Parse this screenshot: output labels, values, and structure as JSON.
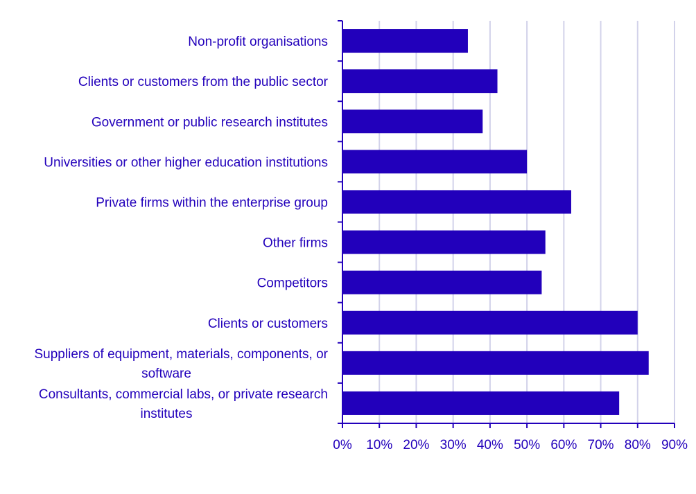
{
  "chart_data": {
    "type": "bar",
    "orientation": "horizontal",
    "title": "",
    "xlabel": "",
    "ylabel": "",
    "categories": [
      "Non-profit organisations",
      "Clients or customers from the public sector",
      "Government or public research institutes",
      "Universities or other higher education institutions",
      "Private firms within the enterprise group",
      "Other firms",
      "Competitors",
      "Clients or customers",
      "Suppliers of equipment, materials, components, or software",
      "Consultants, commercial labs, or private research institutes"
    ],
    "category_lines": [
      [
        "Non-profit organisations"
      ],
      [
        "Clients or customers from the public sector"
      ],
      [
        "Government or public research institutes"
      ],
      [
        "Universities or other higher education institutions"
      ],
      [
        "Private firms within the enterprise group"
      ],
      [
        "Other firms"
      ],
      [
        "Competitors"
      ],
      [
        "Clients or customers"
      ],
      [
        "Suppliers of equipment, materials, components, or",
        "software"
      ],
      [
        "Consultants, commercial labs, or private research",
        "institutes"
      ]
    ],
    "values": [
      34,
      42,
      38,
      50,
      62,
      55,
      54,
      80,
      83,
      75
    ],
    "xlim": [
      0,
      90
    ],
    "xticks": [
      0,
      10,
      20,
      30,
      40,
      50,
      60,
      70,
      80,
      90
    ],
    "xtick_labels": [
      "0%",
      "10%",
      "20%",
      "30%",
      "40%",
      "50%",
      "60%",
      "70%",
      "80%",
      "90%"
    ],
    "grid": "vertical",
    "legend": "none",
    "colors": {
      "bar": "#2200bb",
      "text": "#2200bb",
      "grid": "#d2d2ea",
      "axis": "#2200bb"
    }
  }
}
